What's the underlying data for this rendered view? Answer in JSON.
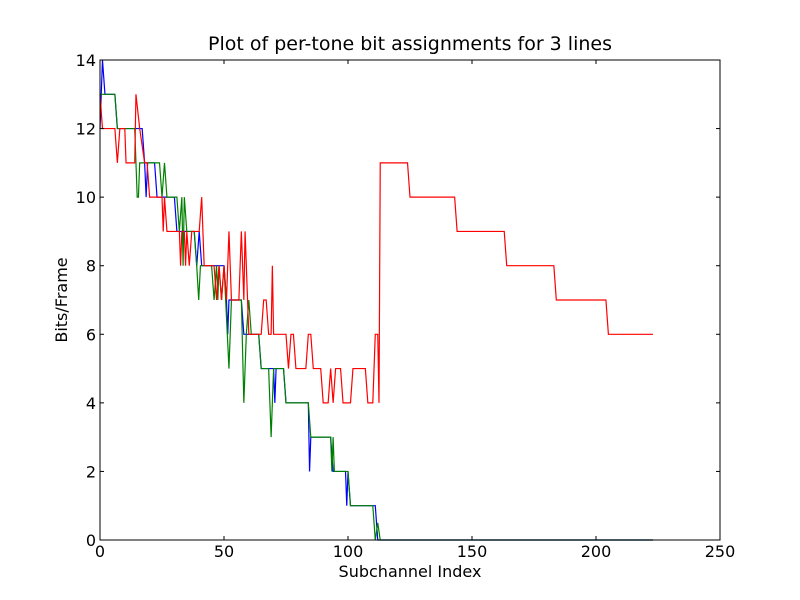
{
  "chart_data": {
    "type": "line",
    "title": "Plot of per-tone bit assignments for 3 lines",
    "xlabel": "Subchannel Index",
    "ylabel": "Bits/Frame",
    "xlim": [
      0,
      250
    ],
    "ylim": [
      0,
      14
    ],
    "xticks": [
      0,
      50,
      100,
      150,
      200,
      250
    ],
    "yticks": [
      0,
      2,
      4,
      6,
      8,
      10,
      12,
      14
    ],
    "grid": false,
    "legend": "none",
    "series": [
      {
        "color": "#0000ff",
        "points": [
          [
            0,
            12
          ],
          [
            1,
            14
          ],
          [
            2,
            13
          ],
          [
            6,
            13
          ],
          [
            7,
            12
          ],
          [
            17,
            12
          ],
          [
            18,
            11
          ],
          [
            18.6,
            10
          ],
          [
            19.2,
            11
          ],
          [
            22,
            11
          ],
          [
            23,
            10
          ],
          [
            30,
            10
          ],
          [
            31,
            9
          ],
          [
            38,
            9
          ],
          [
            39,
            8
          ],
          [
            40,
            9
          ],
          [
            41,
            8
          ],
          [
            50,
            8
          ],
          [
            51,
            7
          ],
          [
            51.5,
            6
          ],
          [
            52,
            7
          ],
          [
            57,
            7
          ],
          [
            58,
            6
          ],
          [
            64,
            6
          ],
          [
            65,
            5
          ],
          [
            70,
            5
          ],
          [
            70.5,
            4
          ],
          [
            71,
            5
          ],
          [
            74,
            5
          ],
          [
            75,
            4
          ],
          [
            84,
            4
          ],
          [
            84.5,
            2
          ],
          [
            85,
            3
          ],
          [
            93,
            3
          ],
          [
            94,
            2
          ],
          [
            99,
            2
          ],
          [
            99.5,
            1
          ],
          [
            100,
            2
          ],
          [
            101,
            1
          ],
          [
            111,
            1
          ],
          [
            112,
            0
          ],
          [
            223,
            0
          ]
        ]
      },
      {
        "color": "#008000",
        "points": [
          [
            0,
            13
          ],
          [
            6,
            13
          ],
          [
            7,
            12
          ],
          [
            14,
            12
          ],
          [
            15,
            10
          ],
          [
            15.5,
            10
          ],
          [
            16,
            11
          ],
          [
            24,
            11
          ],
          [
            25,
            10
          ],
          [
            26,
            11
          ],
          [
            27,
            10
          ],
          [
            31,
            10
          ],
          [
            32,
            9
          ],
          [
            33,
            10
          ],
          [
            33.5,
            8
          ],
          [
            34,
            10
          ],
          [
            35,
            9
          ],
          [
            38,
            9
          ],
          [
            39,
            8
          ],
          [
            39.8,
            7
          ],
          [
            40.5,
            8
          ],
          [
            45,
            8
          ],
          [
            46,
            7
          ],
          [
            47,
            8
          ],
          [
            47.5,
            7
          ],
          [
            48,
            8
          ],
          [
            49,
            7
          ],
          [
            50,
            8
          ],
          [
            52,
            5
          ],
          [
            53,
            7
          ],
          [
            57,
            7
          ],
          [
            58,
            4
          ],
          [
            59,
            6
          ],
          [
            60,
            7
          ],
          [
            61,
            6
          ],
          [
            64,
            6
          ],
          [
            65,
            5
          ],
          [
            68,
            5
          ],
          [
            69,
            3
          ],
          [
            70,
            5
          ],
          [
            74,
            5
          ],
          [
            75,
            4
          ],
          [
            84,
            4
          ],
          [
            85,
            3
          ],
          [
            93,
            3
          ],
          [
            93.5,
            2
          ],
          [
            94,
            3
          ],
          [
            94.5,
            2
          ],
          [
            100,
            2
          ],
          [
            101,
            1
          ],
          [
            110,
            1
          ],
          [
            111,
            0
          ],
          [
            112,
            0.5
          ],
          [
            113,
            0
          ],
          [
            223,
            0
          ]
        ]
      },
      {
        "color": "#ff0000",
        "points": [
          [
            0,
            13
          ],
          [
            1,
            12
          ],
          [
            6,
            12
          ],
          [
            7,
            11
          ],
          [
            8,
            12
          ],
          [
            10,
            12
          ],
          [
            10.5,
            11
          ],
          [
            14,
            11
          ],
          [
            14.5,
            13
          ],
          [
            16,
            12
          ],
          [
            18,
            11
          ],
          [
            19,
            11
          ],
          [
            20,
            10
          ],
          [
            25,
            10
          ],
          [
            25.5,
            9
          ],
          [
            26,
            10
          ],
          [
            27,
            9
          ],
          [
            32,
            9
          ],
          [
            32.5,
            8
          ],
          [
            33,
            9
          ],
          [
            34,
            9
          ],
          [
            34.5,
            8
          ],
          [
            35,
            9
          ],
          [
            36,
            8
          ],
          [
            37,
            9
          ],
          [
            40,
            9
          ],
          [
            41,
            10
          ],
          [
            42,
            8
          ],
          [
            46,
            8
          ],
          [
            47,
            7
          ],
          [
            48,
            8
          ],
          [
            49,
            7
          ],
          [
            50,
            8
          ],
          [
            51,
            7
          ],
          [
            52,
            9
          ],
          [
            53,
            7
          ],
          [
            56,
            7
          ],
          [
            57,
            9
          ],
          [
            58,
            7
          ],
          [
            58.5,
            9
          ],
          [
            59,
            8
          ],
          [
            60,
            6
          ],
          [
            65,
            6
          ],
          [
            66,
            7
          ],
          [
            67,
            7
          ],
          [
            68,
            6
          ],
          [
            69,
            6
          ],
          [
            69.5,
            8
          ],
          [
            70,
            6
          ],
          [
            75,
            6
          ],
          [
            76,
            5
          ],
          [
            77,
            6
          ],
          [
            78,
            6
          ],
          [
            79,
            5
          ],
          [
            83,
            5
          ],
          [
            84,
            6
          ],
          [
            85,
            6
          ],
          [
            86,
            5
          ],
          [
            89,
            5
          ],
          [
            90,
            4
          ],
          [
            92,
            4
          ],
          [
            93,
            5
          ],
          [
            94,
            4
          ],
          [
            95,
            5
          ],
          [
            97,
            5
          ],
          [
            98,
            4
          ],
          [
            101,
            4
          ],
          [
            102,
            5
          ],
          [
            107,
            5
          ],
          [
            108,
            4
          ],
          [
            110,
            4
          ],
          [
            111,
            6
          ],
          [
            112,
            6
          ],
          [
            112.5,
            4
          ],
          [
            113,
            11
          ],
          [
            124,
            11
          ],
          [
            125,
            10
          ],
          [
            143,
            10
          ],
          [
            144,
            9
          ],
          [
            163,
            9
          ],
          [
            164,
            8
          ],
          [
            183,
            8
          ],
          [
            184,
            7
          ],
          [
            204,
            7
          ],
          [
            205,
            6
          ],
          [
            223,
            6
          ]
        ]
      }
    ]
  }
}
